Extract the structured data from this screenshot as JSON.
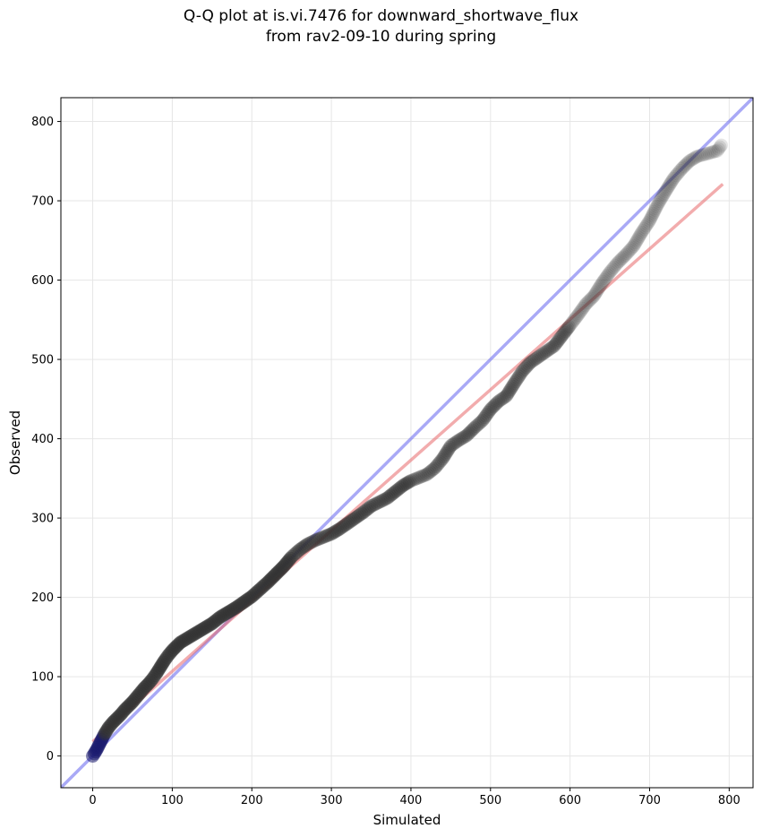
{
  "chart_data": {
    "type": "scatter",
    "title": "Q-Q plot at is.vi.7476 for downward_shortwave_flux",
    "subtitle": "from rav2-09-10 during spring",
    "xlabel": "Simulated",
    "ylabel": "Observed",
    "xlim": [
      -40,
      830
    ],
    "ylim": [
      -40,
      830
    ],
    "xticks": [
      0,
      100,
      200,
      300,
      400,
      500,
      600,
      700,
      800
    ],
    "yticks": [
      0,
      100,
      200,
      300,
      400,
      500,
      600,
      700,
      800
    ],
    "grid": true,
    "colors": {
      "points": "#333333",
      "fit_line": "#e8686a",
      "identity_line": "#7070f0",
      "low_points": "#1a1a6e"
    },
    "quantiles": [
      [
        0,
        0
      ],
      [
        2,
        3
      ],
      [
        5,
        8
      ],
      [
        10,
        18
      ],
      [
        15,
        28
      ],
      [
        20,
        36
      ],
      [
        25,
        42
      ],
      [
        30,
        47
      ],
      [
        35,
        52
      ],
      [
        40,
        58
      ],
      [
        45,
        63
      ],
      [
        50,
        68
      ],
      [
        55,
        74
      ],
      [
        60,
        80
      ],
      [
        65,
        86
      ],
      [
        70,
        91
      ],
      [
        75,
        97
      ],
      [
        80,
        104
      ],
      [
        85,
        112
      ],
      [
        90,
        120
      ],
      [
        95,
        127
      ],
      [
        100,
        133
      ],
      [
        110,
        143
      ],
      [
        120,
        149
      ],
      [
        130,
        155
      ],
      [
        140,
        161
      ],
      [
        150,
        167
      ],
      [
        160,
        175
      ],
      [
        170,
        181
      ],
      [
        180,
        187
      ],
      [
        190,
        194
      ],
      [
        200,
        201
      ],
      [
        210,
        210
      ],
      [
        220,
        219
      ],
      [
        230,
        229
      ],
      [
        240,
        239
      ],
      [
        250,
        251
      ],
      [
        260,
        260
      ],
      [
        270,
        267
      ],
      [
        280,
        272
      ],
      [
        290,
        276
      ],
      [
        300,
        280
      ],
      [
        310,
        286
      ],
      [
        320,
        293
      ],
      [
        330,
        300
      ],
      [
        340,
        307
      ],
      [
        350,
        315
      ],
      [
        360,
        320
      ],
      [
        370,
        325
      ],
      [
        380,
        333
      ],
      [
        390,
        341
      ],
      [
        400,
        347
      ],
      [
        410,
        351
      ],
      [
        420,
        355
      ],
      [
        430,
        363
      ],
      [
        440,
        375
      ],
      [
        450,
        391
      ],
      [
        460,
        398
      ],
      [
        470,
        404
      ],
      [
        480,
        414
      ],
      [
        490,
        423
      ],
      [
        500,
        437
      ],
      [
        510,
        447
      ],
      [
        520,
        454
      ],
      [
        530,
        470
      ],
      [
        540,
        485
      ],
      [
        550,
        496
      ],
      [
        560,
        503
      ],
      [
        570,
        510
      ],
      [
        580,
        517
      ],
      [
        590,
        530
      ],
      [
        600,
        543
      ],
      [
        610,
        556
      ],
      [
        620,
        570
      ],
      [
        630,
        580
      ],
      [
        640,
        596
      ],
      [
        650,
        610
      ],
      [
        660,
        622
      ],
      [
        670,
        632
      ],
      [
        680,
        643
      ],
      [
        690,
        660
      ],
      [
        700,
        675
      ],
      [
        710,
        695
      ],
      [
        720,
        712
      ],
      [
        730,
        728
      ],
      [
        740,
        740
      ],
      [
        750,
        750
      ],
      [
        760,
        756
      ],
      [
        785,
        763
      ],
      [
        790,
        770
      ]
    ],
    "fit_line": {
      "x": [
        0,
        792
      ],
      "y": [
        18,
        721
      ]
    },
    "identity_line": {
      "x": [
        -40,
        830
      ],
      "y": [
        -40,
        830
      ]
    }
  }
}
